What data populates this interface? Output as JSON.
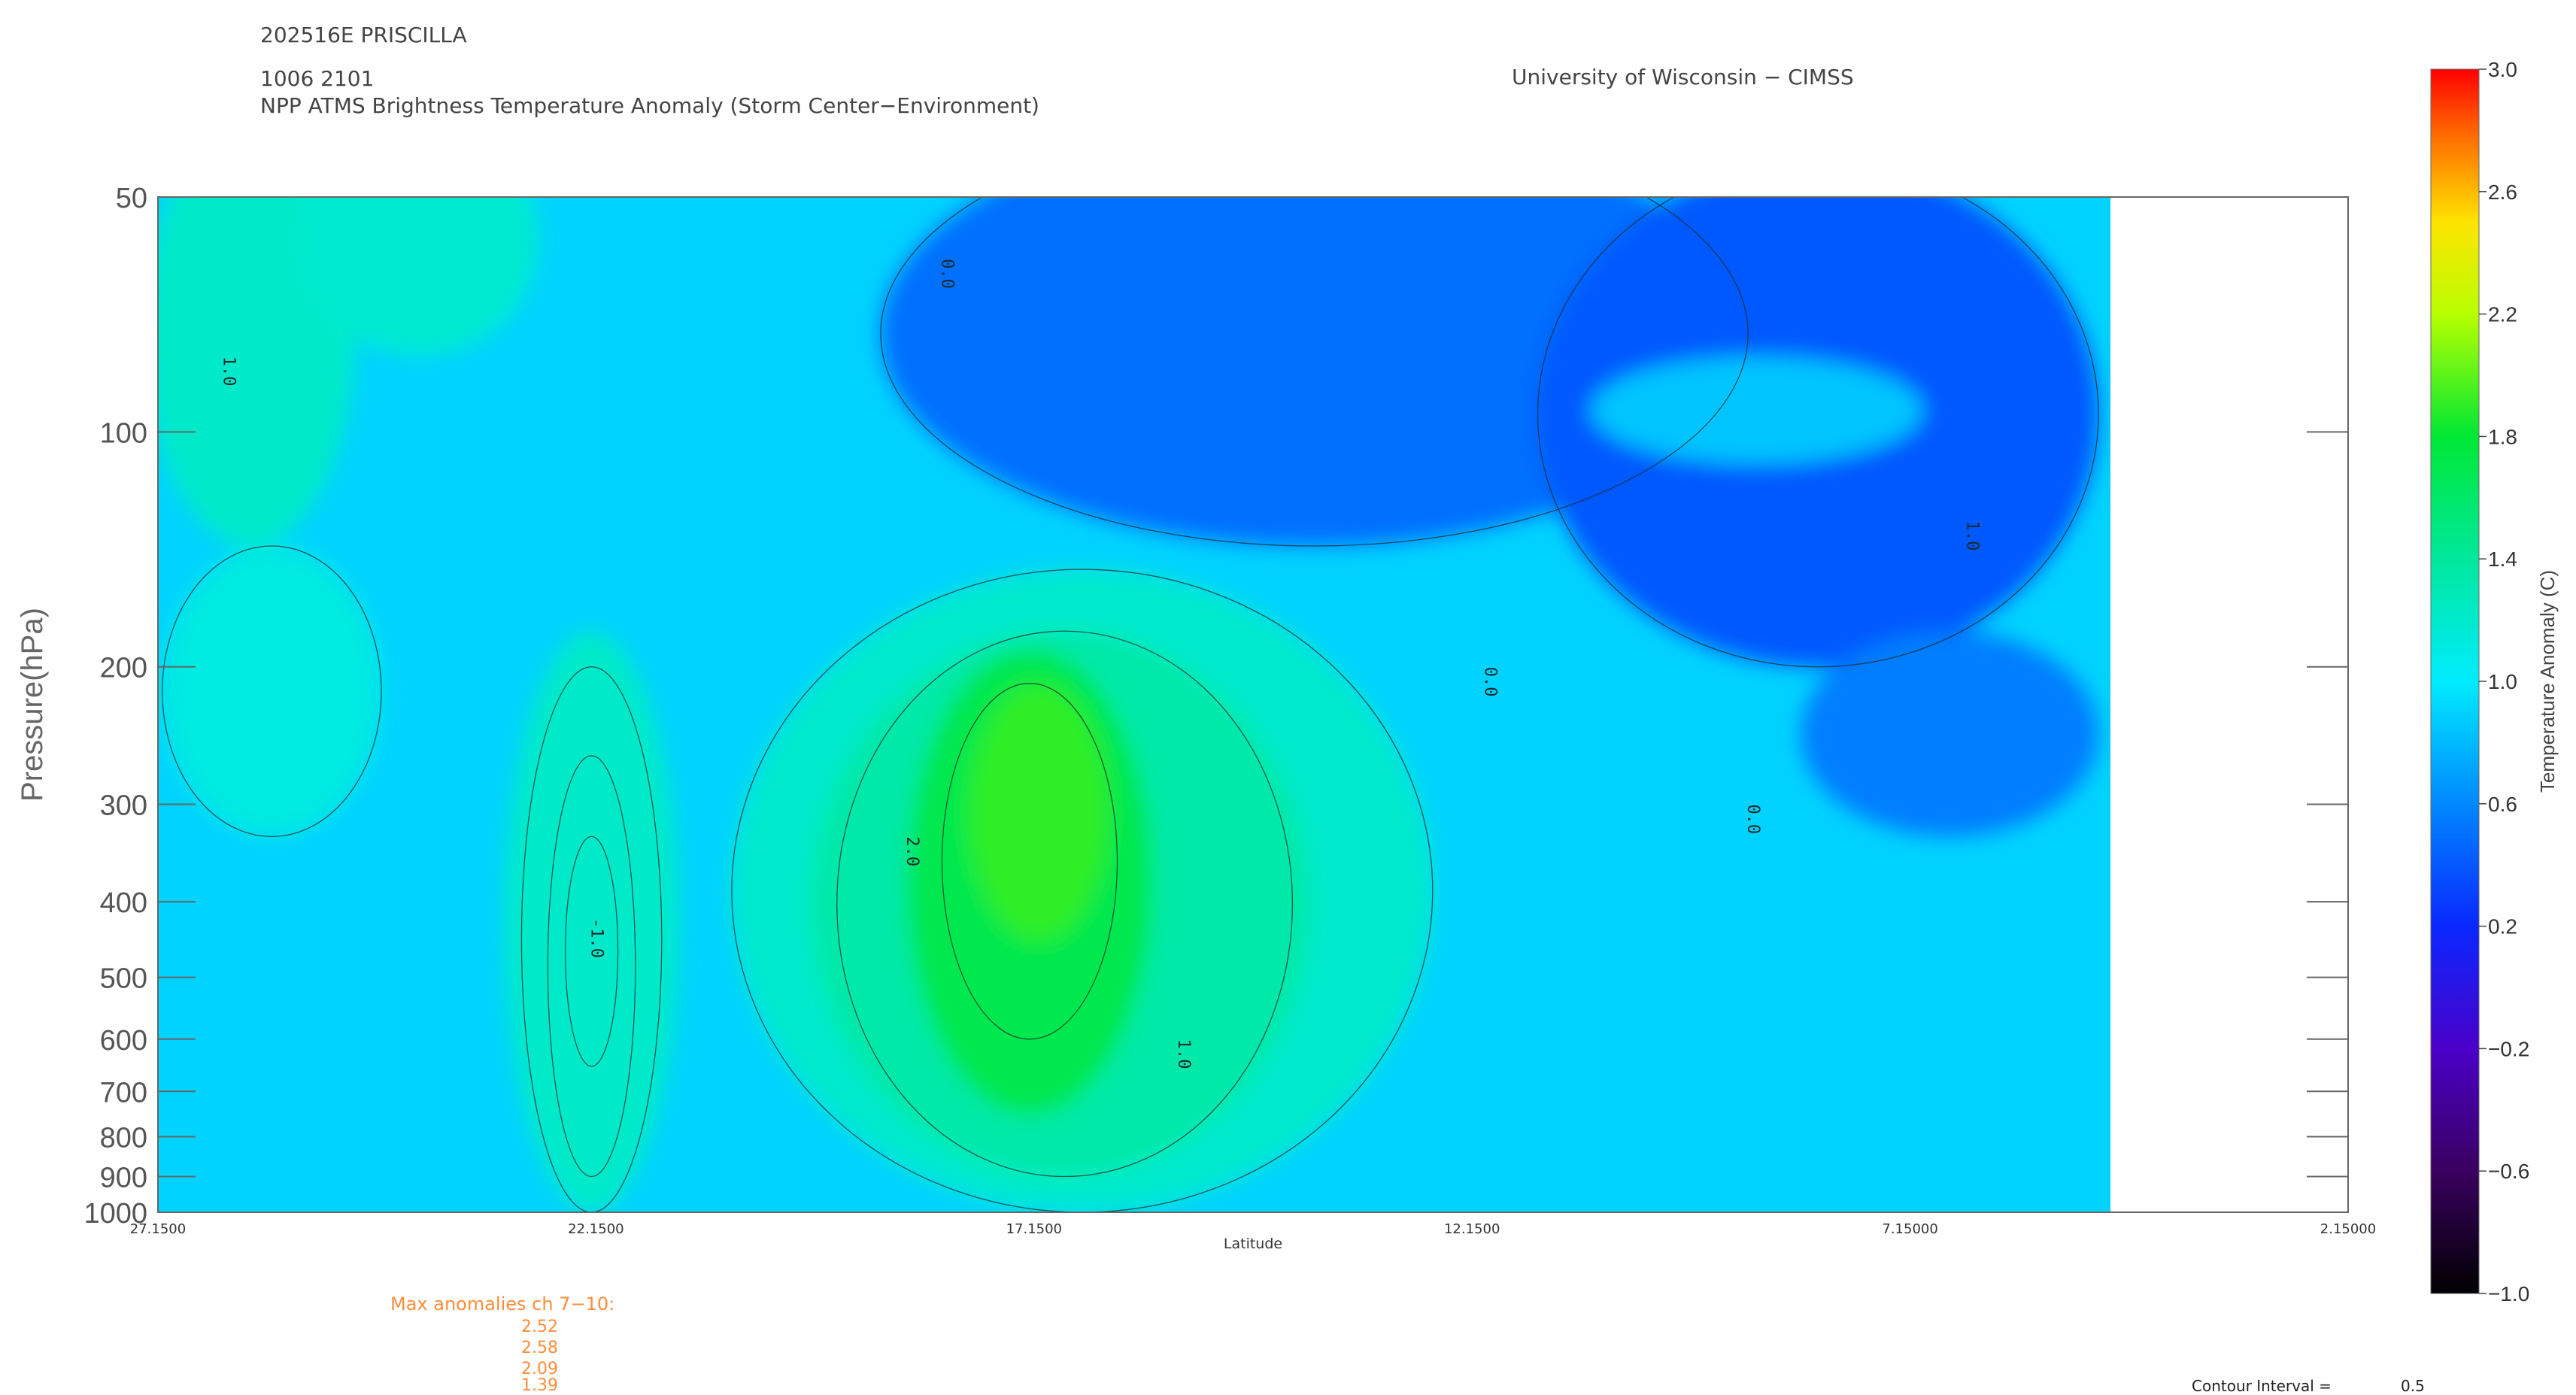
{
  "header": {
    "storm_id": "202516E PRISCILLA",
    "date_time": "1006 2101",
    "product": "NPP ATMS Brightness Temperature Anomaly (Storm Center−Environment)",
    "institution": "University of Wisconsin − CIMSS"
  },
  "chart_data": {
    "type": "heatmap",
    "xlabel": "Latitude",
    "ylabel": "Pressure(hPa)",
    "x_ticks": [
      "27.1500",
      "22.1500",
      "17.1500",
      "12.1500",
      "7.15000",
      "2.15000"
    ],
    "x_tick_values": [
      27.15,
      22.15,
      17.15,
      12.15,
      7.15,
      2.15
    ],
    "xlim": [
      27.15,
      2.15
    ],
    "data_x_extent": [
      27.15,
      4.4
    ],
    "y_scale": "log",
    "ylim": [
      1000,
      50
    ],
    "y_ticks": [
      50,
      100,
      200,
      300,
      400,
      500,
      600,
      700,
      800,
      900,
      1000
    ],
    "y_tick_labels": [
      "50",
      "100",
      "200",
      "300",
      "400",
      "500",
      "600",
      "700",
      "800",
      "900",
      "1000"
    ],
    "colorbar": {
      "label": "Temperature Anomaly (C)",
      "range": [
        -1.0,
        3.0
      ],
      "ticks": [
        "3.0",
        "2.6",
        "2.2",
        "1.8",
        "1.4",
        "1.0",
        "0.6",
        "0.2",
        "−0.2",
        "−0.6",
        "−1.0"
      ],
      "tick_values": [
        3.0,
        2.6,
        2.2,
        1.8,
        1.4,
        1.0,
        0.6,
        0.2,
        -0.2,
        -0.6,
        -1.0
      ]
    },
    "contour_interval": "0.5",
    "contour_labels": [
      "0.0",
      "1.0",
      "2.0",
      "-1.0"
    ],
    "features": [
      {
        "lat": 18.6,
        "p": 330,
        "value": 2.0
      },
      {
        "lat": 22.2,
        "p": 420,
        "value": -1.0
      }
    ],
    "max_anomalies": [
      "2.52",
      "2.58",
      "2.09",
      "1.39"
    ]
  },
  "footer": {
    "max_anomalies_title": "Max anomalies ch 7−10:",
    "contour_interval_label": "Contour Interval =",
    "contour_interval_value": "0.5"
  }
}
